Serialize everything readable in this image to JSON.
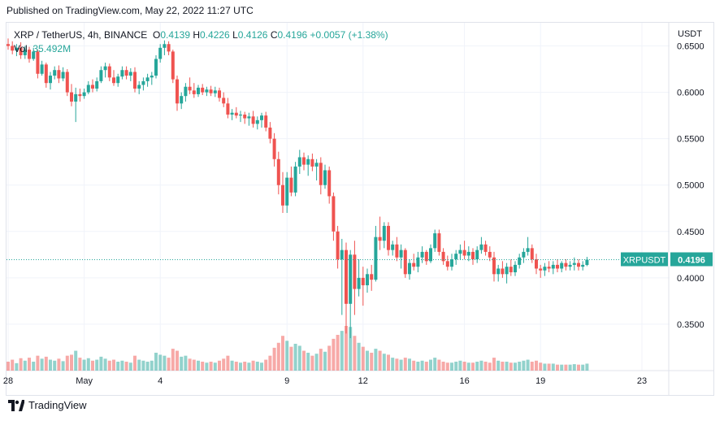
{
  "published": "Published on TradingView.com, May 22, 2022 11:27 UTC",
  "legend": {
    "symbol": "XRP / TetherUS, 4h, BINANCE",
    "o_label": "O",
    "o_value": "0.4139",
    "h_label": "H",
    "h_value": "0.4226",
    "l_label": "L",
    "l_value": "0.4126",
    "c_label": "C",
    "c_value": "0.4196",
    "change": "+0.0057 (+1.38%)",
    "vol_label": "Vol",
    "vol_value": "35.492M"
  },
  "footer": {
    "brand": "TradingView",
    "logo_icon": "tradingview-logo-icon"
  },
  "colors": {
    "up": "#26a69a",
    "down": "#ef5350",
    "up_vol": "#26a69a",
    "down_vol": "#ef5350",
    "grid": "#f0f3fa",
    "text": "#131722"
  },
  "chart_data": {
    "type": "candlestick",
    "symbol": "XRPUSDT",
    "interval": "4h",
    "exchange": "BINANCE",
    "currency_label": "USDT",
    "y_ticks": [
      0.65,
      0.6,
      0.55,
      0.5,
      0.45,
      0.4,
      0.35
    ],
    "y_tick_labels": [
      "0.6500",
      "0.6000",
      "0.5500",
      "0.5000",
      "0.4500",
      "0.4000",
      "0.3500"
    ],
    "ylim": [
      0.3,
      0.675
    ],
    "x_ticks": [
      {
        "label": "28",
        "index": 0
      },
      {
        "label": "May",
        "index": 18
      },
      {
        "label": "4",
        "index": 36
      },
      {
        "label": "9",
        "index": 66
      },
      {
        "label": "12",
        "index": 84
      },
      {
        "label": "16",
        "index": 108
      },
      {
        "label": "19",
        "index": 126
      },
      {
        "label": "23",
        "index": 150
      }
    ],
    "last_price_label": "XRPUSDT",
    "last_price": "0.4196",
    "grid": true,
    "candles": [
      [
        0.652,
        0.658,
        0.646,
        0.65,
        18
      ],
      [
        0.65,
        0.655,
        0.641,
        0.645,
        22
      ],
      [
        0.645,
        0.652,
        0.639,
        0.648,
        15
      ],
      [
        0.648,
        0.654,
        0.636,
        0.64,
        25
      ],
      [
        0.64,
        0.65,
        0.636,
        0.646,
        20
      ],
      [
        0.646,
        0.649,
        0.632,
        0.636,
        26
      ],
      [
        0.636,
        0.648,
        0.634,
        0.644,
        18
      ],
      [
        0.644,
        0.646,
        0.615,
        0.62,
        30
      ],
      [
        0.62,
        0.634,
        0.618,
        0.63,
        24
      ],
      [
        0.63,
        0.632,
        0.605,
        0.61,
        28
      ],
      [
        0.61,
        0.622,
        0.603,
        0.618,
        22
      ],
      [
        0.618,
        0.628,
        0.614,
        0.624,
        20
      ],
      [
        0.624,
        0.629,
        0.61,
        0.615,
        24
      ],
      [
        0.615,
        0.627,
        0.612,
        0.622,
        19
      ],
      [
        0.622,
        0.625,
        0.596,
        0.6,
        30
      ],
      [
        0.6,
        0.609,
        0.585,
        0.59,
        32
      ],
      [
        0.59,
        0.605,
        0.568,
        0.598,
        40
      ],
      [
        0.598,
        0.604,
        0.59,
        0.596,
        26
      ],
      [
        0.596,
        0.604,
        0.593,
        0.6,
        22
      ],
      [
        0.6,
        0.612,
        0.598,
        0.608,
        25
      ],
      [
        0.608,
        0.614,
        0.6,
        0.604,
        20
      ],
      [
        0.604,
        0.616,
        0.601,
        0.612,
        22
      ],
      [
        0.612,
        0.628,
        0.61,
        0.624,
        28
      ],
      [
        0.624,
        0.632,
        0.616,
        0.628,
        24
      ],
      [
        0.628,
        0.631,
        0.612,
        0.616,
        20
      ],
      [
        0.616,
        0.624,
        0.607,
        0.61,
        22
      ],
      [
        0.61,
        0.62,
        0.606,
        0.617,
        18
      ],
      [
        0.617,
        0.628,
        0.614,
        0.624,
        20
      ],
      [
        0.624,
        0.628,
        0.614,
        0.618,
        18
      ],
      [
        0.618,
        0.626,
        0.612,
        0.622,
        16
      ],
      [
        0.622,
        0.627,
        0.6,
        0.604,
        30
      ],
      [
        0.604,
        0.612,
        0.598,
        0.608,
        22
      ],
      [
        0.608,
        0.616,
        0.602,
        0.612,
        20
      ],
      [
        0.612,
        0.62,
        0.606,
        0.616,
        18
      ],
      [
        0.616,
        0.622,
        0.608,
        0.618,
        20
      ],
      [
        0.618,
        0.64,
        0.615,
        0.636,
        36
      ],
      [
        0.636,
        0.652,
        0.632,
        0.648,
        32
      ],
      [
        0.648,
        0.656,
        0.64,
        0.652,
        30
      ],
      [
        0.652,
        0.655,
        0.64,
        0.644,
        26
      ],
      [
        0.644,
        0.646,
        0.61,
        0.614,
        44
      ],
      [
        0.614,
        0.618,
        0.58,
        0.588,
        40
      ],
      [
        0.588,
        0.6,
        0.582,
        0.596,
        28
      ],
      [
        0.596,
        0.61,
        0.59,
        0.606,
        30
      ],
      [
        0.606,
        0.616,
        0.598,
        0.602,
        24
      ],
      [
        0.602,
        0.61,
        0.594,
        0.598,
        22
      ],
      [
        0.598,
        0.608,
        0.595,
        0.605,
        20
      ],
      [
        0.605,
        0.609,
        0.597,
        0.6,
        18
      ],
      [
        0.6,
        0.606,
        0.596,
        0.603,
        16
      ],
      [
        0.603,
        0.607,
        0.596,
        0.599,
        18
      ],
      [
        0.599,
        0.606,
        0.595,
        0.602,
        16
      ],
      [
        0.602,
        0.605,
        0.59,
        0.594,
        20
      ],
      [
        0.594,
        0.6,
        0.584,
        0.588,
        24
      ],
      [
        0.588,
        0.594,
        0.572,
        0.576,
        30
      ],
      [
        0.576,
        0.582,
        0.57,
        0.578,
        20
      ],
      [
        0.578,
        0.584,
        0.572,
        0.575,
        18
      ],
      [
        0.575,
        0.58,
        0.568,
        0.576,
        16
      ],
      [
        0.576,
        0.579,
        0.566,
        0.572,
        18
      ],
      [
        0.572,
        0.578,
        0.564,
        0.574,
        16
      ],
      [
        0.574,
        0.58,
        0.562,
        0.566,
        20
      ],
      [
        0.566,
        0.574,
        0.56,
        0.57,
        18
      ],
      [
        0.57,
        0.578,
        0.562,
        0.575,
        16
      ],
      [
        0.575,
        0.579,
        0.558,
        0.562,
        22
      ],
      [
        0.562,
        0.568,
        0.545,
        0.55,
        30
      ],
      [
        0.55,
        0.556,
        0.52,
        0.528,
        46
      ],
      [
        0.528,
        0.536,
        0.49,
        0.5,
        56
      ],
      [
        0.5,
        0.514,
        0.47,
        0.478,
        70
      ],
      [
        0.478,
        0.514,
        0.47,
        0.508,
        60
      ],
      [
        0.508,
        0.52,
        0.488,
        0.492,
        48
      ],
      [
        0.492,
        0.525,
        0.488,
        0.52,
        54
      ],
      [
        0.52,
        0.538,
        0.512,
        0.53,
        50
      ],
      [
        0.53,
        0.535,
        0.516,
        0.522,
        40
      ],
      [
        0.522,
        0.532,
        0.51,
        0.528,
        36
      ],
      [
        0.528,
        0.534,
        0.515,
        0.52,
        30
      ],
      [
        0.52,
        0.528,
        0.505,
        0.524,
        34
      ],
      [
        0.524,
        0.53,
        0.49,
        0.5,
        44
      ],
      [
        0.5,
        0.522,
        0.496,
        0.516,
        38
      ],
      [
        0.516,
        0.52,
        0.48,
        0.488,
        50
      ],
      [
        0.488,
        0.492,
        0.44,
        0.45,
        64
      ],
      [
        0.45,
        0.456,
        0.41,
        0.42,
        72
      ],
      [
        0.42,
        0.442,
        0.36,
        0.43,
        80
      ],
      [
        0.43,
        0.438,
        0.34,
        0.372,
        90
      ],
      [
        0.372,
        0.43,
        0.335,
        0.425,
        88
      ],
      [
        0.425,
        0.44,
        0.36,
        0.388,
        70
      ],
      [
        0.388,
        0.42,
        0.38,
        0.4,
        56
      ],
      [
        0.4,
        0.412,
        0.37,
        0.392,
        48
      ],
      [
        0.392,
        0.41,
        0.384,
        0.404,
        40
      ],
      [
        0.404,
        0.414,
        0.386,
        0.398,
        36
      ],
      [
        0.398,
        0.456,
        0.396,
        0.444,
        44
      ],
      [
        0.444,
        0.466,
        0.43,
        0.44,
        40
      ],
      [
        0.44,
        0.46,
        0.432,
        0.456,
        34
      ],
      [
        0.456,
        0.46,
        0.424,
        0.43,
        32
      ],
      [
        0.43,
        0.44,
        0.424,
        0.436,
        26
      ],
      [
        0.436,
        0.444,
        0.418,
        0.422,
        24
      ],
      [
        0.422,
        0.436,
        0.41,
        0.43,
        22
      ],
      [
        0.43,
        0.432,
        0.4,
        0.404,
        26
      ],
      [
        0.404,
        0.42,
        0.398,
        0.416,
        24
      ],
      [
        0.416,
        0.426,
        0.408,
        0.412,
        20
      ],
      [
        0.412,
        0.428,
        0.406,
        0.422,
        18
      ],
      [
        0.422,
        0.434,
        0.416,
        0.428,
        20
      ],
      [
        0.428,
        0.43,
        0.414,
        0.418,
        18
      ],
      [
        0.418,
        0.436,
        0.416,
        0.432,
        22
      ],
      [
        0.432,
        0.452,
        0.428,
        0.448,
        26
      ],
      [
        0.448,
        0.452,
        0.424,
        0.428,
        22
      ],
      [
        0.428,
        0.432,
        0.414,
        0.418,
        18
      ],
      [
        0.418,
        0.424,
        0.408,
        0.412,
        16
      ],
      [
        0.412,
        0.426,
        0.408,
        0.42,
        16
      ],
      [
        0.42,
        0.43,
        0.414,
        0.426,
        18
      ],
      [
        0.426,
        0.436,
        0.42,
        0.43,
        20
      ],
      [
        0.43,
        0.44,
        0.42,
        0.424,
        18
      ],
      [
        0.424,
        0.434,
        0.418,
        0.428,
        16
      ],
      [
        0.428,
        0.432,
        0.414,
        0.42,
        16
      ],
      [
        0.42,
        0.434,
        0.416,
        0.43,
        18
      ],
      [
        0.43,
        0.444,
        0.426,
        0.436,
        20
      ],
      [
        0.436,
        0.44,
        0.424,
        0.428,
        18
      ],
      [
        0.428,
        0.434,
        0.418,
        0.422,
        16
      ],
      [
        0.422,
        0.428,
        0.396,
        0.404,
        26
      ],
      [
        0.404,
        0.414,
        0.396,
        0.41,
        20
      ],
      [
        0.41,
        0.418,
        0.4,
        0.404,
        18
      ],
      [
        0.404,
        0.416,
        0.394,
        0.412,
        18
      ],
      [
        0.412,
        0.42,
        0.402,
        0.406,
        16
      ],
      [
        0.406,
        0.418,
        0.402,
        0.414,
        16
      ],
      [
        0.414,
        0.426,
        0.41,
        0.422,
        18
      ],
      [
        0.422,
        0.432,
        0.416,
        0.428,
        20
      ],
      [
        0.428,
        0.444,
        0.424,
        0.432,
        22
      ],
      [
        0.432,
        0.436,
        0.416,
        0.42,
        18
      ],
      [
        0.42,
        0.426,
        0.404,
        0.41,
        20
      ],
      [
        0.41,
        0.414,
        0.4,
        0.408,
        16
      ],
      [
        0.408,
        0.416,
        0.402,
        0.412,
        14
      ],
      [
        0.412,
        0.418,
        0.406,
        0.41,
        14
      ],
      [
        0.41,
        0.418,
        0.404,
        0.414,
        14
      ],
      [
        0.414,
        0.42,
        0.406,
        0.41,
        12
      ],
      [
        0.41,
        0.418,
        0.406,
        0.416,
        12
      ],
      [
        0.416,
        0.42,
        0.408,
        0.412,
        12
      ],
      [
        0.412,
        0.418,
        0.408,
        0.414,
        12
      ],
      [
        0.414,
        0.422,
        0.408,
        0.416,
        13
      ],
      [
        0.416,
        0.42,
        0.408,
        0.412,
        12
      ],
      [
        0.412,
        0.418,
        0.408,
        0.414,
        12
      ],
      [
        0.4139,
        0.4226,
        0.4126,
        0.4196,
        14
      ]
    ]
  }
}
